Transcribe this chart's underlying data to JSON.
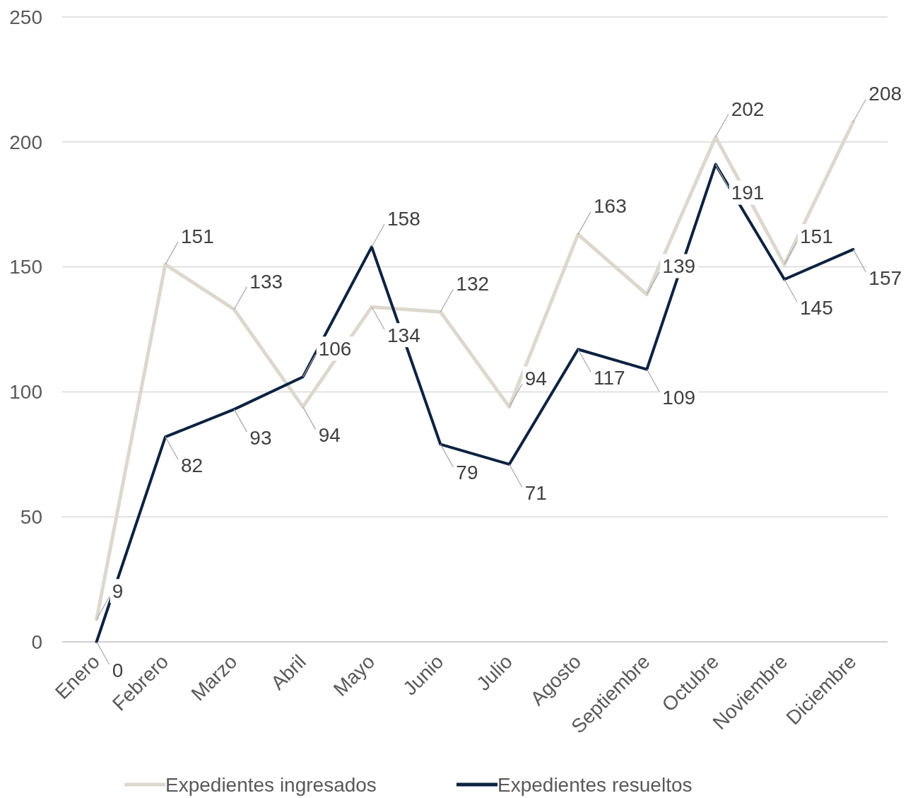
{
  "chart_data": {
    "type": "line",
    "categories": [
      "Enero",
      "Febrero",
      "Marzo",
      "Abril",
      "Mayo",
      "Junio",
      "Julio",
      "Agosto",
      "Septiembre",
      "Octubre",
      "Noviembre",
      "Diciembre"
    ],
    "series": [
      {
        "name": "Expedientes ingresados",
        "color": "#ddd8ce",
        "values": [
          9,
          151,
          133,
          94,
          134,
          132,
          94,
          163,
          139,
          202,
          151,
          208
        ]
      },
      {
        "name": "Expedientes resueltos",
        "color": "#0d2240",
        "values": [
          0,
          82,
          93,
          106,
          158,
          79,
          71,
          117,
          109,
          191,
          145,
          157
        ]
      }
    ],
    "ylim": [
      0,
      250
    ],
    "yticks": [
      0,
      50,
      100,
      150,
      200,
      250
    ],
    "grid": "y",
    "legend": "bottom",
    "data_labels": true,
    "marker": "none",
    "line_style": "solid"
  }
}
